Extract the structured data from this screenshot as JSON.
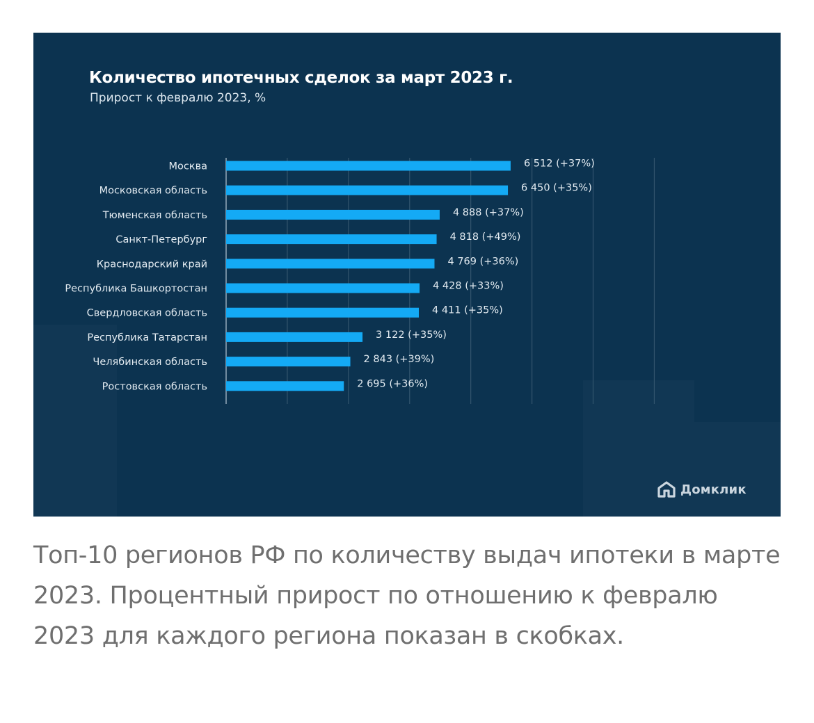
{
  "chart_data": {
    "type": "bar",
    "orientation": "horizontal",
    "title": "Количество ипотечных сделок за март 2023 г.",
    "subtitle": "Прирост к февралю 2023, %",
    "categories": [
      "Москва",
      "Московская область",
      "Тюменская область",
      "Санкт-Петербург",
      "Краснодарский край",
      "Республика Башкортостан",
      "Свердловская область",
      "Республика Татарстан",
      "Челябинская область",
      "Ростовская область"
    ],
    "values": [
      6512,
      6450,
      4888,
      4818,
      4769,
      4428,
      4411,
      3122,
      2843,
      2695
    ],
    "data_labels": [
      "6 512 (+37%)",
      "6 450 (+35%)",
      "4 888 (+37%)",
      "4 818 (+49%)",
      "4 769 (+36%)",
      "4 428 (+33%)",
      "4 411 (+35%)",
      "3 122 (+35%)",
      "2 843 (+39%)",
      "2 695 (+36%)"
    ],
    "growth_percent": [
      37,
      35,
      37,
      49,
      36,
      33,
      35,
      35,
      39,
      36
    ],
    "xlim": [
      0,
      10000
    ],
    "grid": true,
    "legend": "none",
    "bar_color": "#14aaf5"
  },
  "colors": {
    "background": "#0c3350",
    "bar": "#14aaf5",
    "grid": "#33556e",
    "text": "#ffffff"
  },
  "logo": {
    "text": "Домклик",
    "icon": "house-icon"
  },
  "caption": "Топ-10 регионов РФ по количеству выдач ипотеки в марте 2023. Процентный прирост по отношению к февралю 2023 для каждого региона показан в скобках."
}
